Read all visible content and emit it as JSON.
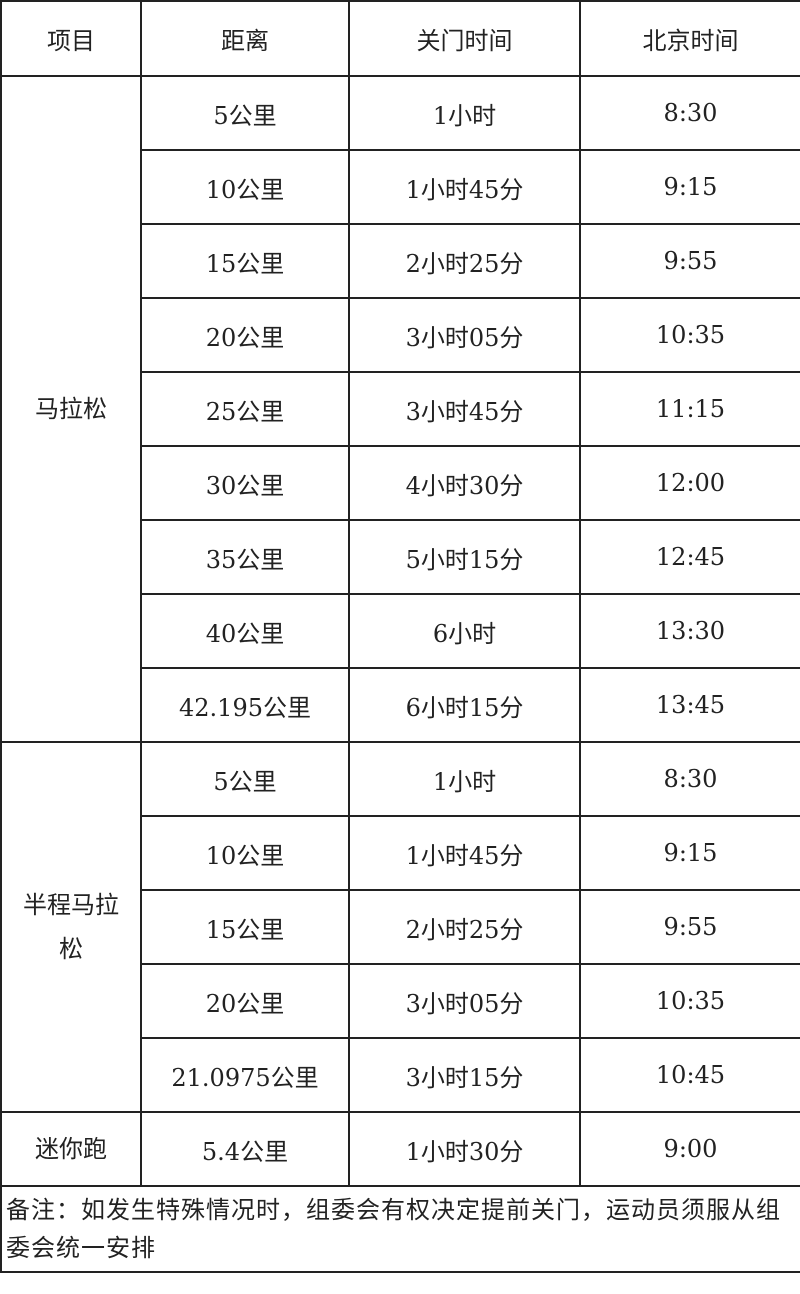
{
  "headers": [
    "项目",
    "距离",
    "关门时间",
    "北京时间"
  ],
  "groups": [
    {
      "name": "马拉松",
      "rows": [
        [
          "5公里",
          "1小时",
          "8:30"
        ],
        [
          "10公里",
          "1小时45分",
          "9:15"
        ],
        [
          "15公里",
          "2小时25分",
          "9:55"
        ],
        [
          "20公里",
          "3小时05分",
          "10:35"
        ],
        [
          "25公里",
          "3小时45分",
          "11:15"
        ],
        [
          "30公里",
          "4小时30分",
          "12:00"
        ],
        [
          "35公里",
          "5小时15分",
          "12:45"
        ],
        [
          "40公里",
          "6小时",
          "13:30"
        ],
        [
          "42.195公里",
          "6小时15分",
          "13:45"
        ]
      ]
    },
    {
      "name": "半程马拉松",
      "rows": [
        [
          "5公里",
          "1小时",
          "8:30"
        ],
        [
          "10公里",
          "1小时45分",
          "9:15"
        ],
        [
          "15公里",
          "2小时25分",
          "9:55"
        ],
        [
          "20公里",
          "3小时05分",
          "10:35"
        ],
        [
          "21.0975公里",
          "3小时15分",
          "10:45"
        ]
      ]
    },
    {
      "name": "迷你跑",
      "rows": [
        [
          "5.4公里",
          "1小时30分",
          "9:00"
        ]
      ]
    }
  ],
  "note": "备注：如发生特殊情况时，组委会有权决定提前关门，运动员须服从组委会统一安排"
}
